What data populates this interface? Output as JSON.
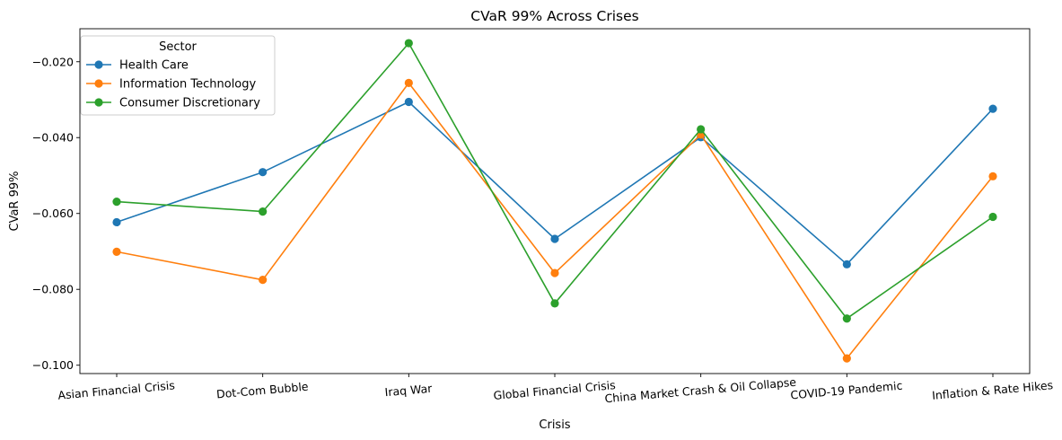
{
  "chart_data": {
    "type": "line",
    "title": "CVaR 99% Across Crises",
    "xlabel": "Crisis",
    "ylabel": "CVaR 99%",
    "categories": [
      "Asian Financial Crisis",
      "Dot-Com Bubble",
      "Iraq War",
      "Global Financial Crisis",
      "China Market Crash & Oil Collapse",
      "COVID-19 Pandemic",
      "Inflation & Rate Hikes"
    ],
    "ylim": [
      -0.1022,
      -0.0113
    ],
    "yticks": [
      -0.1,
      -0.08,
      -0.06,
      -0.04,
      -0.02
    ],
    "ytick_labels": [
      "−0.100",
      "−0.080",
      "−0.060",
      "−0.040",
      "−0.020"
    ],
    "grid": false,
    "legend": {
      "title": "Sector",
      "placement": "top-left"
    },
    "series": [
      {
        "name": "Health Care",
        "color": "#1f77b4",
        "values": [
          -0.0623,
          -0.0491,
          -0.0306,
          -0.0667,
          -0.0399,
          -0.0734,
          -0.0324
        ]
      },
      {
        "name": "Information Technology",
        "color": "#ff7f0e",
        "values": [
          -0.0701,
          -0.0775,
          -0.0256,
          -0.0757,
          -0.0392,
          -0.0982,
          -0.0502
        ]
      },
      {
        "name": "Consumer Discretionary",
        "color": "#2ca02c",
        "values": [
          -0.0569,
          -0.0595,
          -0.0151,
          -0.0837,
          -0.0378,
          -0.0877,
          -0.0609
        ]
      }
    ]
  }
}
